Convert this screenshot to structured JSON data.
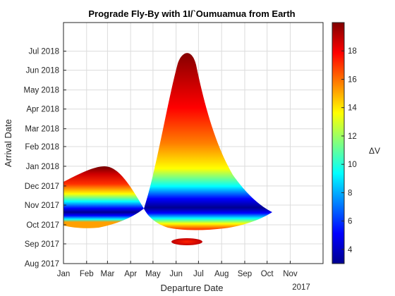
{
  "chart_data": {
    "type": "heatmap",
    "title": "Prograde Fly-By with 1I/`Oumuamua from Earth",
    "xlabel": "Departure Date",
    "ylabel": "Arrival Date",
    "x_year_label": "2017",
    "x_ticks": [
      "Jan",
      "Feb",
      "Mar",
      "Apr",
      "May",
      "Jun",
      "Jul",
      "Aug",
      "Sep",
      "Oct",
      "Nov"
    ],
    "x_range": [
      "2017-01-01",
      "2017-12-15"
    ],
    "y_ticks": [
      "Aug 2017",
      "Sep 2017",
      "Oct 2017",
      "Nov 2017",
      "Dec 2017",
      "Jan 2018",
      "Feb 2018",
      "Mar 2018",
      "Apr 2018",
      "May 2018",
      "Jun 2018",
      "Jul 2018"
    ],
    "y_range": [
      "2017-08-01",
      "2018-08-15"
    ],
    "grid": true,
    "colormap": "jet",
    "colorbar": {
      "label": "ΔV",
      "range": [
        3,
        20
      ],
      "ticks": [
        "4",
        "6",
        "8",
        "10",
        "12",
        "14",
        "16",
        "18"
      ],
      "tick_values": [
        4,
        6,
        8,
        10,
        12,
        14,
        16,
        18
      ]
    },
    "regions": [
      {
        "name": "left-lobe",
        "departure": [
          "2017-01-01",
          "2017-04-22"
        ],
        "arrival": [
          "2017-10-01",
          "2018-01-03"
        ],
        "min_dv": 3,
        "min_dv_arrival": "2017-10-20"
      },
      {
        "name": "right-lobe",
        "departure": [
          "2017-04-22",
          "2017-10-05"
        ],
        "arrival": [
          "2017-09-26",
          "2018-06-20"
        ],
        "min_dv": 3,
        "min_dv_arrival": "2017-10-22"
      },
      {
        "name": "small-island",
        "departure": [
          "2017-06-05",
          "2017-07-05"
        ],
        "arrival": [
          "2017-08-30",
          "2017-09-04"
        ],
        "min_dv": 17
      }
    ]
  }
}
